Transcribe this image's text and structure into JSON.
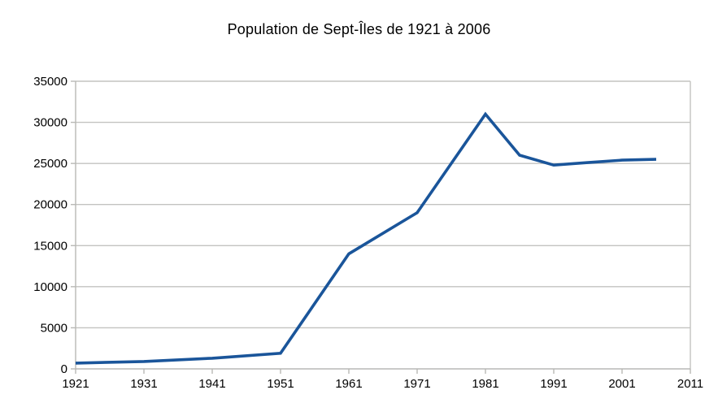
{
  "chart_data": {
    "type": "line",
    "title": "Population de Sept-Îles de 1921 à 2006",
    "series": [
      {
        "name": "Population",
        "x": [
          1921,
          1931,
          1941,
          1951,
          1961,
          1971,
          1981,
          1986,
          1991,
          1996,
          2001,
          2006
        ],
        "values": [
          700,
          900,
          1300,
          1900,
          14000,
          19000,
          31000,
          26000,
          24800,
          25100,
          25400,
          25500
        ]
      }
    ],
    "xlabel": "",
    "ylabel": "",
    "xlim": [
      1921,
      2011
    ],
    "ylim": [
      0,
      35000
    ],
    "x_tick_labels": [
      "1921",
      "1931",
      "1941",
      "1951",
      "1961",
      "1971",
      "1981",
      "1991",
      "2001",
      "2011"
    ],
    "y_tick_labels": [
      "0",
      "5000",
      "10000",
      "15000",
      "20000",
      "25000",
      "30000",
      "35000"
    ],
    "y_tick_step": 5000,
    "x_tick_step": 10,
    "grid": "horizontal gridlines only",
    "legend_position": "none",
    "colors": {
      "line": "#1a559a",
      "gridline": "#c3c3c0",
      "axis": "#b8b8b5",
      "text": "#000000",
      "background": "#ffffff"
    }
  }
}
